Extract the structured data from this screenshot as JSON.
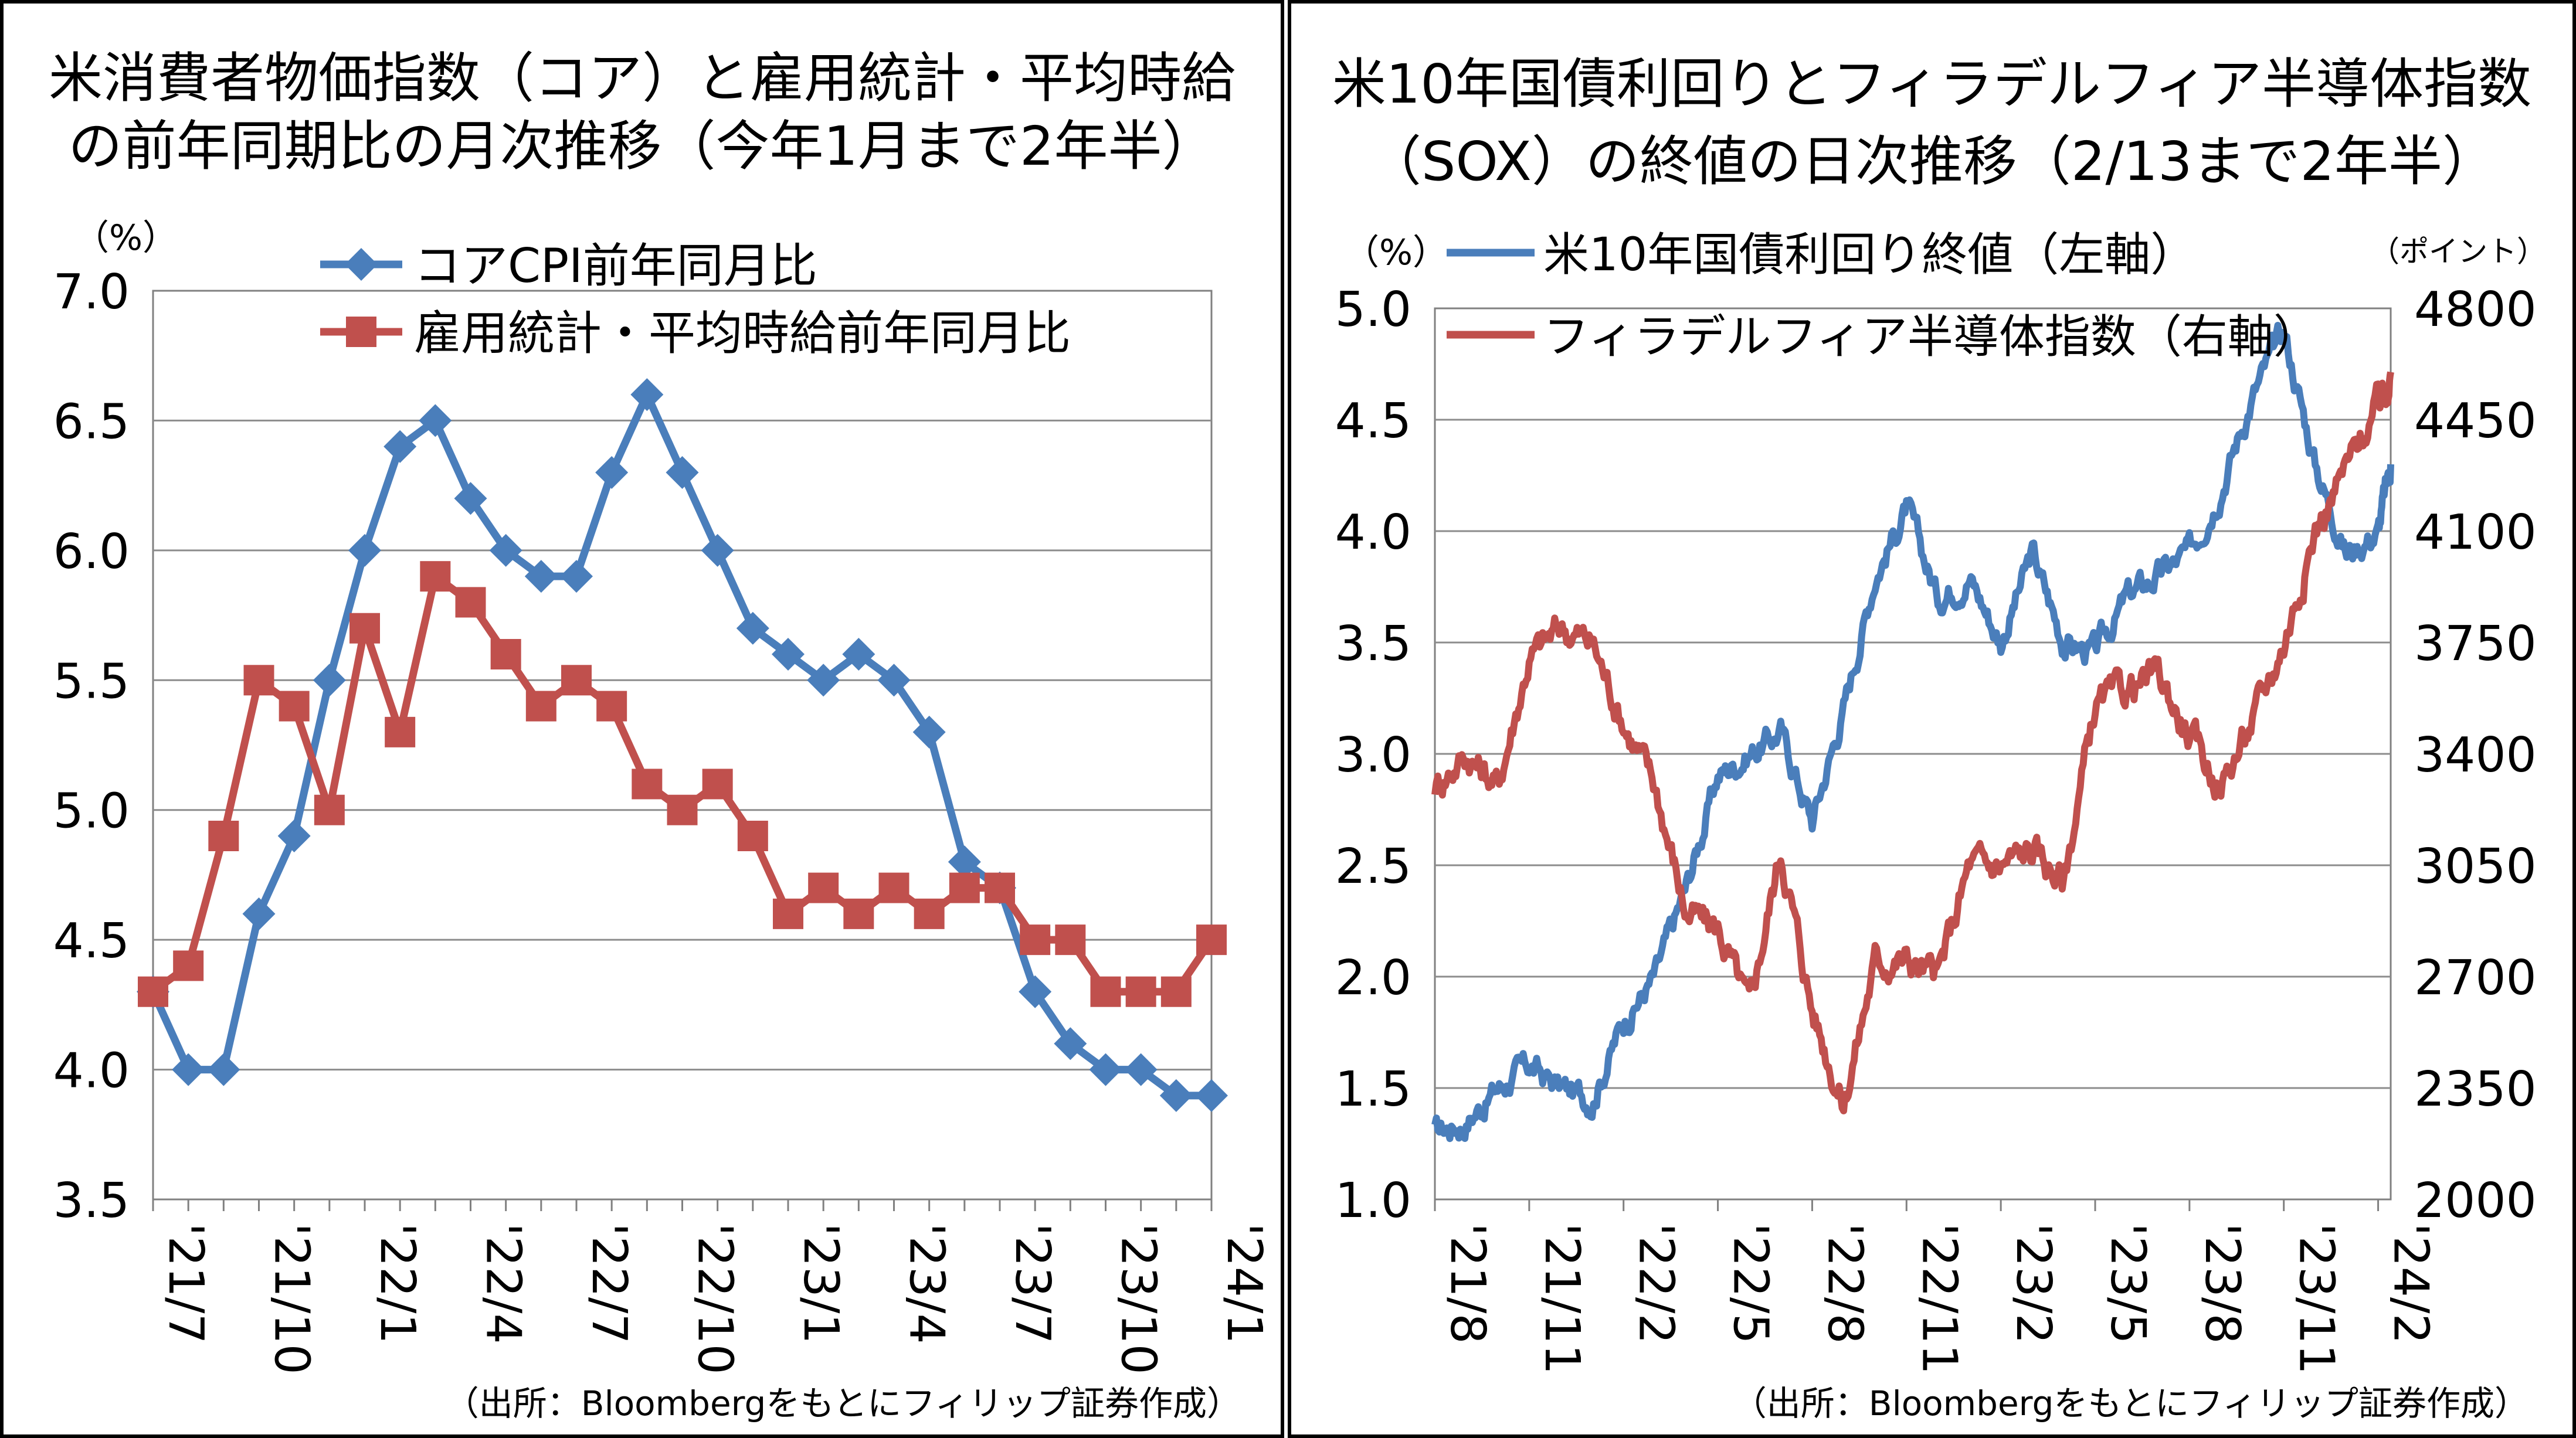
{
  "chart_data": [
    {
      "type": "line",
      "title_line1": "米消費者物価指数（コア）と雇用統計・平均時給",
      "title_line2": "の前年同期比の月次推移（今年1月まで2年半）",
      "yunit": "（%）",
      "source": "（出所：Bloombergをもとにフィリップ証券作成）",
      "ylim": [
        3.5,
        7.0
      ],
      "yticks": [
        "3.5",
        "4.0",
        "4.5",
        "5.0",
        "5.5",
        "6.0",
        "6.5",
        "7.0"
      ],
      "x": [
        "'21/7",
        "'21/8",
        "'21/9",
        "'21/10",
        "'21/11",
        "'21/12",
        "'22/1",
        "'22/2",
        "'22/3",
        "'22/4",
        "'22/5",
        "'22/6",
        "'22/7",
        "'22/8",
        "'22/9",
        "'22/10",
        "'22/11",
        "'22/12",
        "'23/1",
        "'23/2",
        "'23/3",
        "'23/4",
        "'23/5",
        "'23/6",
        "'23/7",
        "'23/8",
        "'23/9",
        "'23/10",
        "'23/11",
        "'23/12",
        "'24/1"
      ],
      "xtick_labels": [
        "'21/7",
        "'21/10",
        "'22/1",
        "'22/4",
        "'22/7",
        "'22/10",
        "'23/1",
        "'23/4",
        "'23/7",
        "'23/10",
        "'24/1"
      ],
      "grid": "horizontal",
      "legend_placement": "top",
      "series": [
        {
          "name": "コアCPI前年同月比",
          "color": "#4a7ebb",
          "marker": "diamond",
          "values": [
            4.3,
            4.0,
            4.0,
            4.6,
            4.9,
            5.5,
            6.0,
            6.4,
            6.5,
            6.2,
            6.0,
            5.9,
            5.9,
            6.3,
            6.6,
            6.3,
            6.0,
            5.7,
            5.6,
            5.5,
            5.6,
            5.5,
            5.3,
            4.8,
            4.7,
            4.3,
            4.1,
            4.0,
            4.0,
            3.9,
            3.9
          ]
        },
        {
          "name": "雇用統計・平均時給前年同月比",
          "color": "#c0504d",
          "marker": "square",
          "values": [
            4.3,
            4.4,
            4.9,
            5.5,
            5.4,
            5.0,
            5.7,
            5.3,
            5.9,
            5.8,
            5.6,
            5.4,
            5.5,
            5.4,
            5.1,
            5.0,
            5.1,
            4.9,
            4.6,
            4.7,
            4.6,
            4.7,
            4.6,
            4.7,
            4.7,
            4.5,
            4.5,
            4.3,
            4.3,
            4.3,
            4.5
          ]
        }
      ]
    },
    {
      "type": "line",
      "title_line1": "米10年国債利回りとフィラデルフィア半導体指数",
      "title_line2": "（SOX）の終値の日次推移（2/13まで2年半）",
      "yunit_left": "（%）",
      "yunit_right": "（ポイント）",
      "source": "（出所：Bloombergをもとにフィリップ証券作成）",
      "ylim_left": [
        1.0,
        5.0
      ],
      "ylim_right": [
        2000,
        4800
      ],
      "yticks_left": [
        "1.0",
        "1.5",
        "2.0",
        "2.5",
        "3.0",
        "3.5",
        "4.0",
        "4.5",
        "5.0"
      ],
      "yticks_right": [
        "2000",
        "2350",
        "2700",
        "3050",
        "3400",
        "3750",
        "4100",
        "4450",
        "4800"
      ],
      "xtick_labels": [
        "'21/8",
        "'21/11",
        "'22/2",
        "'22/5",
        "'22/8",
        "'22/11",
        "'23/2",
        "'23/5",
        "'23/8",
        "'23/11",
        "'24/2"
      ],
      "grid": "horizontal",
      "legend_placement": "top",
      "series": [
        {
          "name": "米10年国債利回り終値（左軸）",
          "color": "#4a7ebb",
          "axis": "left",
          "monthly_month_index": [
            0,
            1,
            2,
            3,
            4,
            5,
            6,
            7,
            8,
            9,
            10,
            11,
            12,
            13,
            14,
            15,
            16,
            17,
            18,
            19,
            20,
            21,
            22,
            23,
            24,
            25,
            26,
            27,
            28,
            29,
            30,
            30.4
          ],
          "values": [
            1.3,
            1.35,
            1.5,
            1.6,
            1.5,
            1.45,
            1.8,
            2.0,
            2.4,
            2.9,
            3.0,
            3.1,
            2.7,
            3.2,
            3.8,
            4.1,
            3.7,
            3.8,
            3.5,
            3.9,
            3.5,
            3.45,
            3.7,
            3.8,
            3.9,
            4.2,
            4.6,
            4.9,
            4.3,
            3.9,
            4.0,
            4.3
          ]
        },
        {
          "name": "フィラデルフィア半導体指数（右軸）",
          "color": "#c0504d",
          "axis": "right",
          "monthly_month_index": [
            0,
            1,
            2,
            3,
            4,
            5,
            6,
            7,
            8,
            9,
            10,
            11,
            12,
            13,
            14,
            15,
            16,
            17,
            18,
            19,
            20,
            21,
            22,
            23,
            24,
            25,
            26,
            27,
            28,
            29,
            30,
            30.4
          ],
          "values": [
            3300,
            3400,
            3300,
            3700,
            3800,
            3750,
            3500,
            3300,
            2900,
            2850,
            2600,
            3100,
            2600,
            2300,
            2750,
            2750,
            2700,
            3050,
            3050,
            3100,
            3000,
            3550,
            3600,
            3650,
            3450,
            3300,
            3500,
            3750,
            4100,
            4300,
            4500,
            4600
          ]
        }
      ]
    }
  ]
}
